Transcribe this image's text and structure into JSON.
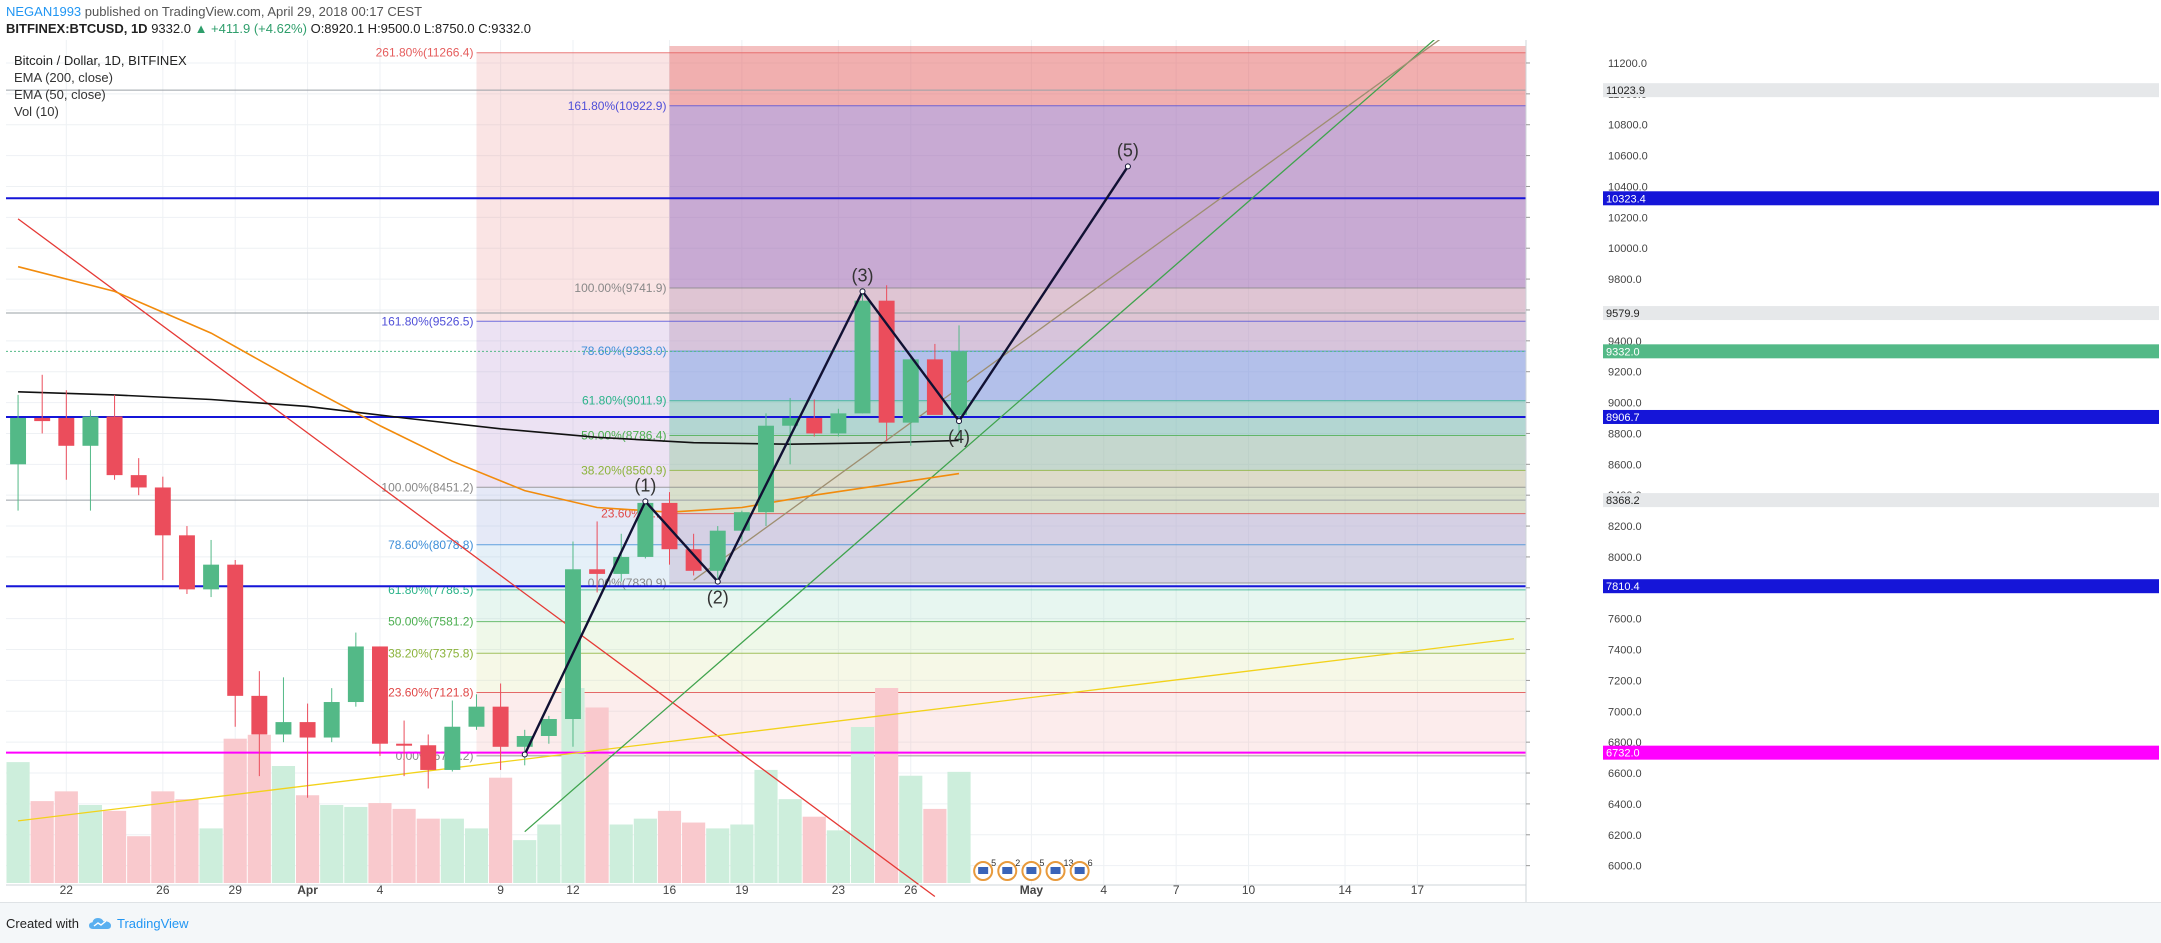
{
  "header": {
    "author": "NEGAN1993",
    "published_text": "published on TradingView.com, April 29, 2018 00:17 CEST",
    "symbol": "BITFINEX:BTCUSD, 1D",
    "last": "9332.0",
    "change": "▲ +411.9 (+4.62%)",
    "ohlc": "O:8920.1 H:9500.0 L:8750.0 C:9332.0"
  },
  "legend": {
    "title": "Bitcoin / Dollar, 1D, BITFINEX",
    "ema200": "EMA (200, close)",
    "ema50": "EMA (50, close)",
    "vol": "Vol (10)"
  },
  "footer": {
    "created_with": "Created with",
    "brand": "TradingView"
  },
  "colors": {
    "up": "#53b987",
    "down": "#eb4d5c",
    "vol_up": "#cdeedc",
    "vol_down": "#f9c9cd",
    "ema200": "#111111",
    "ema50": "#f28b0c",
    "blue_level": "#1515d8",
    "magenta_level": "#ff00ff",
    "wave": "#111133"
  },
  "chart_data": {
    "type": "candlestick",
    "timeframe": "1D",
    "ylim": [
      5920,
      11310
    ],
    "yticks": [
      6000,
      6200,
      6400,
      6600,
      6800,
      7000,
      7200,
      7400,
      7600,
      7800,
      8000,
      8200,
      8400,
      8600,
      8800,
      9000,
      9200,
      9400,
      9600,
      9800,
      10000,
      10200,
      10400,
      10600,
      10800,
      11000,
      11200
    ],
    "x_start": "2018-03-20",
    "x_end": "2018-05-21",
    "xticks": [
      {
        "date": "2018-03-22",
        "label": "22"
      },
      {
        "date": "2018-03-26",
        "label": "26"
      },
      {
        "date": "2018-03-29",
        "label": "29"
      },
      {
        "date": "2018-04-01",
        "label": "Apr"
      },
      {
        "date": "2018-04-04",
        "label": "4"
      },
      {
        "date": "2018-04-09",
        "label": "9"
      },
      {
        "date": "2018-04-12",
        "label": "12"
      },
      {
        "date": "2018-04-16",
        "label": "16"
      },
      {
        "date": "2018-04-19",
        "label": "19"
      },
      {
        "date": "2018-04-23",
        "label": "23"
      },
      {
        "date": "2018-04-26",
        "label": "26"
      },
      {
        "date": "2018-05-01",
        "label": "May"
      },
      {
        "date": "2018-05-04",
        "label": "4"
      },
      {
        "date": "2018-05-07",
        "label": "7"
      },
      {
        "date": "2018-05-10",
        "label": "10"
      },
      {
        "date": "2018-05-14",
        "label": "14"
      },
      {
        "date": "2018-05-17",
        "label": "17"
      }
    ],
    "candles": [
      {
        "d": "2018-03-20",
        "o": 8600,
        "h": 9050,
        "l": 8300,
        "c": 8900,
        "v": 0.62
      },
      {
        "d": "2018-03-21",
        "o": 8900,
        "h": 9180,
        "l": 8800,
        "c": 8880,
        "v": 0.42
      },
      {
        "d": "2018-03-22",
        "o": 8900,
        "h": 9080,
        "l": 8500,
        "c": 8720,
        "v": 0.47
      },
      {
        "d": "2018-03-23",
        "o": 8720,
        "h": 8950,
        "l": 8300,
        "c": 8910,
        "v": 0.4
      },
      {
        "d": "2018-03-24",
        "o": 8910,
        "h": 9050,
        "l": 8500,
        "c": 8530,
        "v": 0.37
      },
      {
        "d": "2018-03-25",
        "o": 8530,
        "h": 8640,
        "l": 8400,
        "c": 8450,
        "v": 0.24
      },
      {
        "d": "2018-03-26",
        "o": 8450,
        "h": 8520,
        "l": 7850,
        "c": 8140,
        "v": 0.47
      },
      {
        "d": "2018-03-27",
        "o": 8140,
        "h": 8200,
        "l": 7760,
        "c": 7790,
        "v": 0.43
      },
      {
        "d": "2018-03-28",
        "o": 7790,
        "h": 8110,
        "l": 7740,
        "c": 7950,
        "v": 0.28
      },
      {
        "d": "2018-03-29",
        "o": 7950,
        "h": 7980,
        "l": 6900,
        "c": 7100,
        "v": 0.74
      },
      {
        "d": "2018-03-30",
        "o": 7100,
        "h": 7260,
        "l": 6580,
        "c": 6850,
        "v": 0.76
      },
      {
        "d": "2018-03-31",
        "o": 6850,
        "h": 7220,
        "l": 6800,
        "c": 6930,
        "v": 0.6
      },
      {
        "d": "2018-04-01",
        "o": 6930,
        "h": 7050,
        "l": 6440,
        "c": 6830,
        "v": 0.45
      },
      {
        "d": "2018-04-02",
        "o": 6830,
        "h": 7150,
        "l": 6800,
        "c": 7060,
        "v": 0.4
      },
      {
        "d": "2018-04-03",
        "o": 7060,
        "h": 7510,
        "l": 7030,
        "c": 7420,
        "v": 0.39
      },
      {
        "d": "2018-04-04",
        "o": 7420,
        "h": 7420,
        "l": 6710,
        "c": 6790,
        "v": 0.41
      },
      {
        "d": "2018-04-05",
        "o": 6790,
        "h": 6940,
        "l": 6580,
        "c": 6780,
        "v": 0.38
      },
      {
        "d": "2018-04-06",
        "o": 6780,
        "h": 6850,
        "l": 6500,
        "c": 6620,
        "v": 0.33
      },
      {
        "d": "2018-04-07",
        "o": 6620,
        "h": 7070,
        "l": 6610,
        "c": 6900,
        "v": 0.33
      },
      {
        "d": "2018-04-08",
        "o": 6900,
        "h": 7110,
        "l": 6880,
        "c": 7030,
        "v": 0.28
      },
      {
        "d": "2018-04-09",
        "o": 7030,
        "h": 7180,
        "l": 6620,
        "c": 6770,
        "v": 0.54
      },
      {
        "d": "2018-04-10",
        "o": 6770,
        "h": 6880,
        "l": 6650,
        "c": 6840,
        "v": 0.22
      },
      {
        "d": "2018-04-11",
        "o": 6840,
        "h": 6970,
        "l": 6790,
        "c": 6950,
        "v": 0.3
      },
      {
        "d": "2018-04-12",
        "o": 6950,
        "h": 8100,
        "l": 6770,
        "c": 7920,
        "v": 1.0
      },
      {
        "d": "2018-04-13",
        "o": 7920,
        "h": 8230,
        "l": 7770,
        "c": 7890,
        "v": 0.9
      },
      {
        "d": "2018-04-14",
        "o": 7890,
        "h": 8150,
        "l": 7840,
        "c": 8000,
        "v": 0.3
      },
      {
        "d": "2018-04-15",
        "o": 8000,
        "h": 8380,
        "l": 7990,
        "c": 8350,
        "v": 0.33
      },
      {
        "d": "2018-04-16",
        "o": 8350,
        "h": 8420,
        "l": 7950,
        "c": 8050,
        "v": 0.37
      },
      {
        "d": "2018-04-17",
        "o": 8050,
        "h": 8150,
        "l": 7880,
        "c": 7910,
        "v": 0.31
      },
      {
        "d": "2018-04-18",
        "o": 7910,
        "h": 8200,
        "l": 7860,
        "c": 8170,
        "v": 0.28
      },
      {
        "d": "2018-04-19",
        "o": 8170,
        "h": 8300,
        "l": 8100,
        "c": 8290,
        "v": 0.3
      },
      {
        "d": "2018-04-20",
        "o": 8290,
        "h": 8930,
        "l": 8200,
        "c": 8850,
        "v": 0.58
      },
      {
        "d": "2018-04-21",
        "o": 8850,
        "h": 9030,
        "l": 8600,
        "c": 8900,
        "v": 0.43
      },
      {
        "d": "2018-04-22",
        "o": 8900,
        "h": 9020,
        "l": 8780,
        "c": 8800,
        "v": 0.34
      },
      {
        "d": "2018-04-23",
        "o": 8800,
        "h": 8960,
        "l": 8780,
        "c": 8930,
        "v": 0.27
      },
      {
        "d": "2018-04-24",
        "o": 8930,
        "h": 9730,
        "l": 8930,
        "c": 9660,
        "v": 0.8
      },
      {
        "d": "2018-04-25",
        "o": 9660,
        "h": 9760,
        "l": 8750,
        "c": 8870,
        "v": 1.0
      },
      {
        "d": "2018-04-26",
        "o": 8870,
        "h": 9300,
        "l": 8720,
        "c": 9280,
        "v": 0.55
      },
      {
        "d": "2018-04-27",
        "o": 9280,
        "h": 9380,
        "l": 8930,
        "c": 8920,
        "v": 0.38
      },
      {
        "d": "2018-04-28",
        "o": 8920,
        "h": 9500,
        "l": 8750,
        "c": 9332,
        "v": 0.57
      }
    ],
    "ema200": [
      {
        "d": "2018-03-20",
        "y": 9070
      },
      {
        "d": "2018-03-24",
        "y": 9050
      },
      {
        "d": "2018-03-28",
        "y": 9020
      },
      {
        "d": "2018-04-01",
        "y": 8975
      },
      {
        "d": "2018-04-05",
        "y": 8900
      },
      {
        "d": "2018-04-09",
        "y": 8830
      },
      {
        "d": "2018-04-13",
        "y": 8775
      },
      {
        "d": "2018-04-17",
        "y": 8740
      },
      {
        "d": "2018-04-21",
        "y": 8730
      },
      {
        "d": "2018-04-25",
        "y": 8740
      },
      {
        "d": "2018-04-28",
        "y": 8755
      }
    ],
    "ema50": [
      {
        "d": "2018-03-20",
        "y": 9880
      },
      {
        "d": "2018-03-24",
        "y": 9720
      },
      {
        "d": "2018-03-28",
        "y": 9450
      },
      {
        "d": "2018-04-01",
        "y": 9100
      },
      {
        "d": "2018-04-04",
        "y": 8850
      },
      {
        "d": "2018-04-07",
        "y": 8620
      },
      {
        "d": "2018-04-10",
        "y": 8430
      },
      {
        "d": "2018-04-13",
        "y": 8320
      },
      {
        "d": "2018-04-16",
        "y": 8290
      },
      {
        "d": "2018-04-19",
        "y": 8320
      },
      {
        "d": "2018-04-22",
        "y": 8400
      },
      {
        "d": "2018-04-25",
        "y": 8470
      },
      {
        "d": "2018-04-28",
        "y": 8540
      }
    ],
    "horizontal_levels": [
      {
        "price": 10323.4,
        "color": "#1515d8",
        "label": "10323.4"
      },
      {
        "price": 8906.7,
        "color": "#1515d8",
        "label": "8906.7"
      },
      {
        "price": 7810.4,
        "color": "#1515d8",
        "label": "7810.4"
      },
      {
        "price": 6732.0,
        "color": "#ff00ff",
        "label": "6732.0"
      },
      {
        "price": 11023.9,
        "color": "#9aa0a6",
        "label": "11023.9"
      },
      {
        "price": 9579.9,
        "color": "#9aa0a6",
        "label": "9579.9"
      },
      {
        "price": 8368.2,
        "color": "#9aa0a6",
        "label": "8368.2"
      },
      {
        "price": 9332.0,
        "color": "#53b987",
        "label": "9332.0"
      }
    ],
    "fib_left": {
      "from_date": "2018-04-08",
      "to_date": "2018-05-21",
      "levels": [
        {
          "p": 11266.4,
          "label": "261.80%(11266.4)",
          "color": "#e55d5d"
        },
        {
          "p": 9526.5,
          "label": "161.80%(9526.5)",
          "color": "#4f4fd8"
        },
        {
          "p": 8451.2,
          "label": "100.00%(8451.2)",
          "color": "#888888"
        },
        {
          "p": 8078.8,
          "label": "78.60%(8078.8)",
          "color": "#3d8ed8"
        },
        {
          "p": 7786.5,
          "label": "61.80%(7786.5)",
          "color": "#2bb38a"
        },
        {
          "p": 7581.2,
          "label": "50.00%(7581.2)",
          "color": "#4caf50"
        },
        {
          "p": 7375.8,
          "label": "38.20%(7375.8)",
          "color": "#8bb33a"
        },
        {
          "p": 7121.8,
          "label": "23.60%(7121.8)",
          "color": "#e04848"
        },
        {
          "p": 6711.2,
          "label": "0.00%(6711.2)",
          "color": "#888888"
        }
      ]
    },
    "fib_right": {
      "from_date": "2018-04-16",
      "to_date": "2018-05-21",
      "levels": [
        {
          "p": 10922.9,
          "label": "161.80%(10922.9)",
          "color": "#4f4fd8"
        },
        {
          "p": 9741.9,
          "label": "100.00%(9741.9)",
          "color": "#888888"
        },
        {
          "p": 9333.0,
          "label": "78.60%(9333.0)",
          "color": "#3d8ed8"
        },
        {
          "p": 9011.9,
          "label": "61.80%(9011.9)",
          "color": "#2bb38a"
        },
        {
          "p": 8786.4,
          "label": "50.00%(8786.4)",
          "color": "#4caf50"
        },
        {
          "p": 8560.9,
          "label": "38.20%(8560.9)",
          "color": "#8bb33a"
        },
        {
          "p": 8280.9,
          "label": "23.60%(8...)",
          "color": "#e04848"
        },
        {
          "p": 7830.9,
          "label": "0.00%(7830.9)",
          "color": "#888888"
        }
      ]
    },
    "waves": [
      {
        "d": "2018-04-10",
        "y": 6720,
        "label": ""
      },
      {
        "d": "2018-04-15",
        "y": 8360,
        "label": "(1)"
      },
      {
        "d": "2018-04-18",
        "y": 7840,
        "label": "(2)"
      },
      {
        "d": "2018-04-24",
        "y": 9720,
        "label": "(3)"
      },
      {
        "d": "2018-04-28",
        "y": 8880,
        "label": "(4)"
      },
      {
        "d": "2018-05-05",
        "y": 10530,
        "label": "(5)"
      }
    ],
    "calendar_events": [
      {
        "d": "2018-04-29",
        "n": "5"
      },
      {
        "d": "2018-04-30",
        "n": "2"
      },
      {
        "d": "2018-05-01",
        "n": "5"
      },
      {
        "d": "2018-05-02",
        "n": "13"
      },
      {
        "d": "2018-05-03",
        "n": "6"
      }
    ],
    "trend_lines": [
      {
        "from": [
          "2018-03-20",
          10190
        ],
        "to": [
          "2018-04-27",
          5800
        ],
        "color": "#e53935"
      },
      {
        "from": [
          "2018-03-20",
          6290
        ],
        "to": [
          "2018-05-21",
          7470
        ],
        "color": "#f2d21a"
      },
      {
        "from": [
          "2018-04-10",
          6220
        ],
        "to": [
          "2018-05-21",
          11800
        ],
        "color": "#3fa34d"
      },
      {
        "from": [
          "2018-04-17",
          7850
        ],
        "to": [
          "2018-05-21",
          11700
        ],
        "color": "#9e8e70"
      }
    ]
  }
}
